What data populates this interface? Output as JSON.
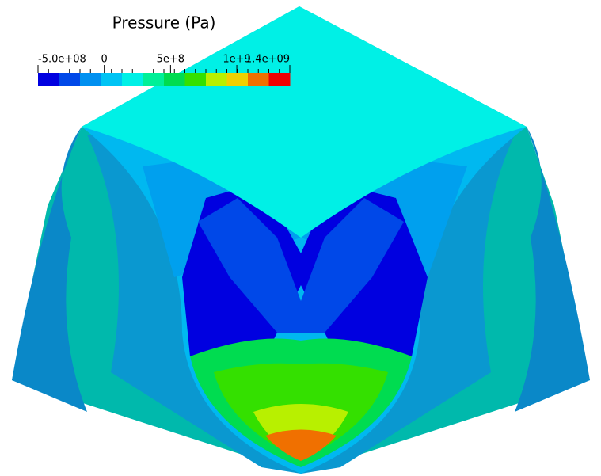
{
  "colorbar": {
    "title": "Pressure (Pa)",
    "lim": [
      -500000000,
      1400000000
    ],
    "ticks": [
      {
        "value": -500000000,
        "label": "-5.0e+08"
      },
      {
        "value": 0,
        "label": "0"
      },
      {
        "value": 500000000,
        "label": "5e+8"
      },
      {
        "value": 1000000000,
        "label": "1e+9"
      },
      {
        "value": 1400000000,
        "label": "1.4e+09"
      }
    ],
    "colors": [
      "#0000e0",
      "#0048e8",
      "#0090f0",
      "#00c4f4",
      "#00f0e6",
      "#00f098",
      "#00dc50",
      "#34e000",
      "#b8f000",
      "#f0d000",
      "#f07000",
      "#f00000"
    ]
  }
}
